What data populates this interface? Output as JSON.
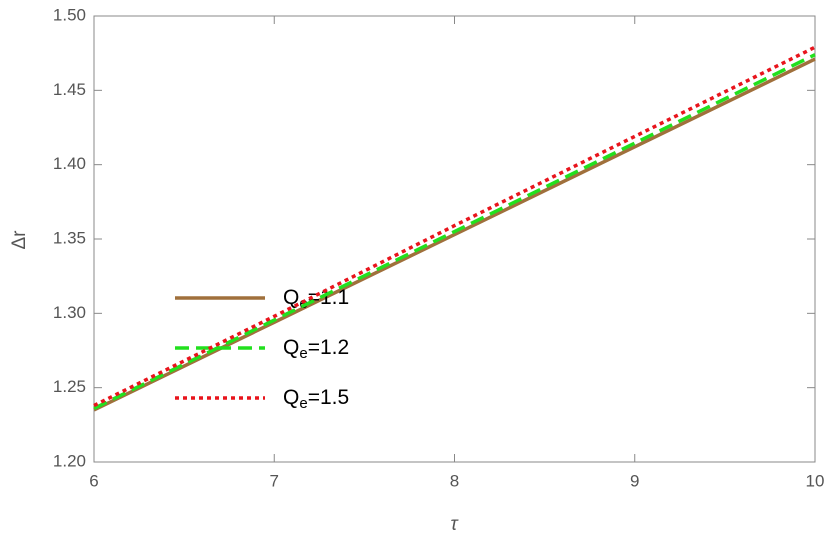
{
  "chart_data": {
    "type": "line",
    "xlabel": "τ",
    "ylabel": "Δr",
    "x": [
      6,
      7,
      8,
      9,
      10
    ],
    "series": [
      {
        "name": "Qe=1.1",
        "color": "#a0703c",
        "dash": "solid",
        "values": [
          1.235,
          1.294,
          1.353,
          1.412,
          1.471
        ]
      },
      {
        "name": "Qe=1.2",
        "color": "#22e01e",
        "dash": "dashed",
        "values": [
          1.236,
          1.2955,
          1.355,
          1.4145,
          1.474
        ]
      },
      {
        "name": "Qe=1.5",
        "color": "#e8141c",
        "dash": "dotted",
        "values": [
          1.238,
          1.298,
          1.359,
          1.419,
          1.479
        ]
      }
    ],
    "xlim": [
      6,
      10
    ],
    "xticks": [
      6,
      7,
      8,
      9,
      10
    ],
    "ylim": [
      1.2,
      1.5
    ],
    "yticks": [
      {
        "value": 1.2,
        "label": "1.20"
      },
      {
        "value": 1.25,
        "label": "1.25"
      },
      {
        "value": 1.3,
        "label": "1.30"
      },
      {
        "value": 1.35,
        "label": "1.35"
      },
      {
        "value": 1.4,
        "label": "1.40"
      },
      {
        "value": 1.45,
        "label": "1.45"
      },
      {
        "value": 1.5,
        "label": "1.50"
      }
    ]
  }
}
